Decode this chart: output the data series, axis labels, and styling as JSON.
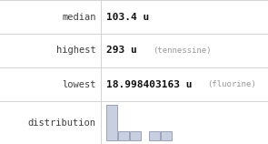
{
  "rows": [
    {
      "label": "median",
      "value": "103.4 u",
      "note": ""
    },
    {
      "label": "highest",
      "value": "293 u",
      "note": "(tennessine)"
    },
    {
      "label": "lowest",
      "value": "18.998403163 u",
      "note": "(fluorine)"
    },
    {
      "label": "distribution",
      "value": "",
      "note": ""
    }
  ],
  "hist_bars": [
    4,
    1,
    1,
    0,
    1,
    1
  ],
  "bar_color": "#c8cfe0",
  "bar_edge_color": "#9098b0",
  "background_color": "#ffffff",
  "border_color": "#cccccc",
  "label_color": "#404040",
  "value_color": "#111111",
  "note_color": "#999999",
  "col_split": 0.375,
  "label_fontsize": 7.5,
  "value_fontsize": 8.0,
  "note_fontsize": 6.5
}
